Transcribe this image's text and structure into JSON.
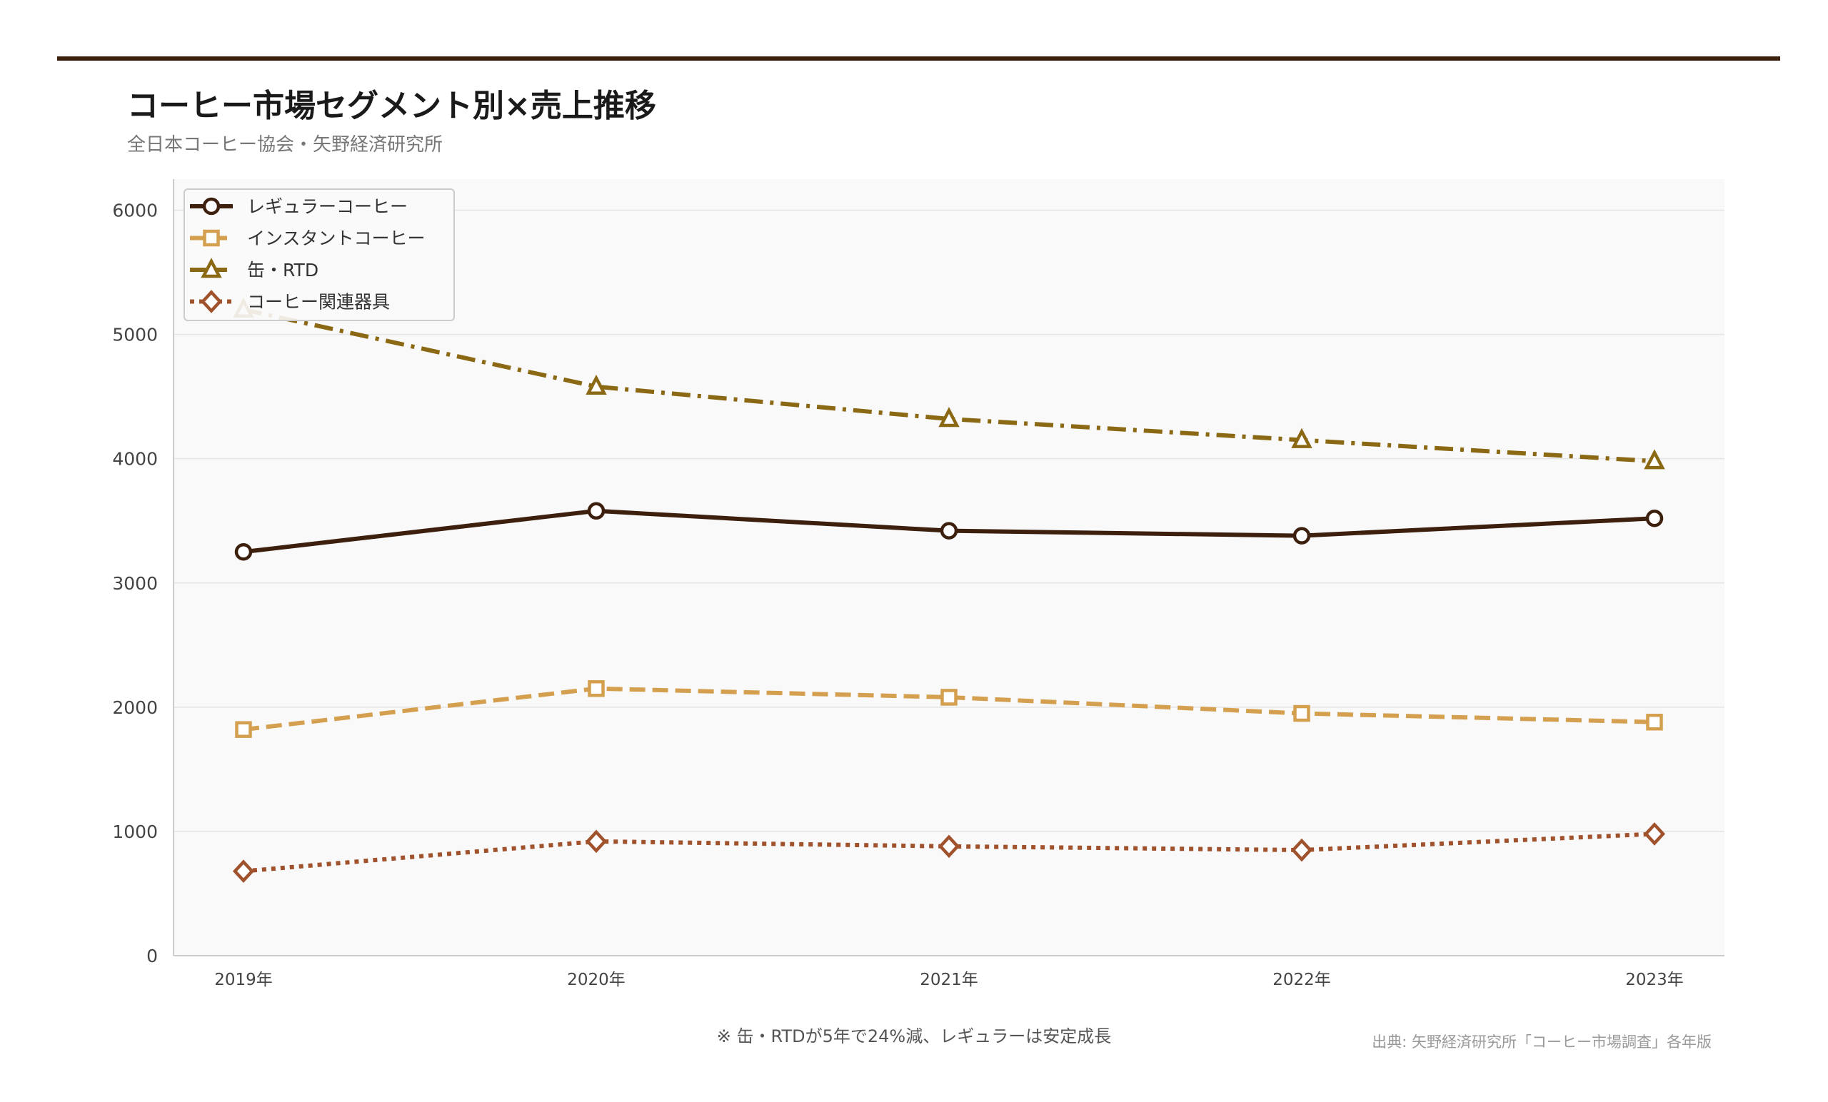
{
  "header": {
    "title": "コーヒー市場セグメント別×売上推移",
    "subtitle": "全日本コーヒー協会・矢野経済研究所"
  },
  "footer": {
    "note": "※ 缶・RTDが5年で24%減、レギュラーは安定成長",
    "source": "出典: 矢野経済研究所「コーヒー市場調査」各年版"
  },
  "colors": {
    "accent_bar": "#3d1f0e",
    "plot_bg": "#f9f9f9",
    "grid": "#e4e4e4"
  },
  "chart_data": {
    "type": "line",
    "title": "コーヒー市場セグメント別×売上推移",
    "xlabel": "",
    "ylabel": "",
    "categories": [
      "2019年",
      "2020年",
      "2021年",
      "2022年",
      "2023年"
    ],
    "ylim": [
      0,
      6250
    ],
    "yticks": [
      0,
      1000,
      2000,
      3000,
      4000,
      5000,
      6000
    ],
    "grid": true,
    "legend_position": "top-left",
    "series": [
      {
        "name": "レギュラーコーヒー",
        "values": [
          3250,
          3580,
          3420,
          3380,
          3520
        ],
        "color": "#3d1f0e",
        "marker": "circle",
        "dash": "solid"
      },
      {
        "name": "インスタントコーヒー",
        "values": [
          1820,
          2150,
          2080,
          1950,
          1880
        ],
        "color": "#d4a04f",
        "marker": "square",
        "dash": "dashed"
      },
      {
        "name": "缶・RTD",
        "values": [
          5200,
          4580,
          4320,
          4150,
          3980
        ],
        "color": "#8b6914",
        "marker": "triangle",
        "dash": "dashdot"
      },
      {
        "name": "コーヒー関連器具",
        "values": [
          680,
          920,
          880,
          850,
          980
        ],
        "color": "#a0522d",
        "marker": "diamond",
        "dash": "dotted"
      }
    ]
  }
}
